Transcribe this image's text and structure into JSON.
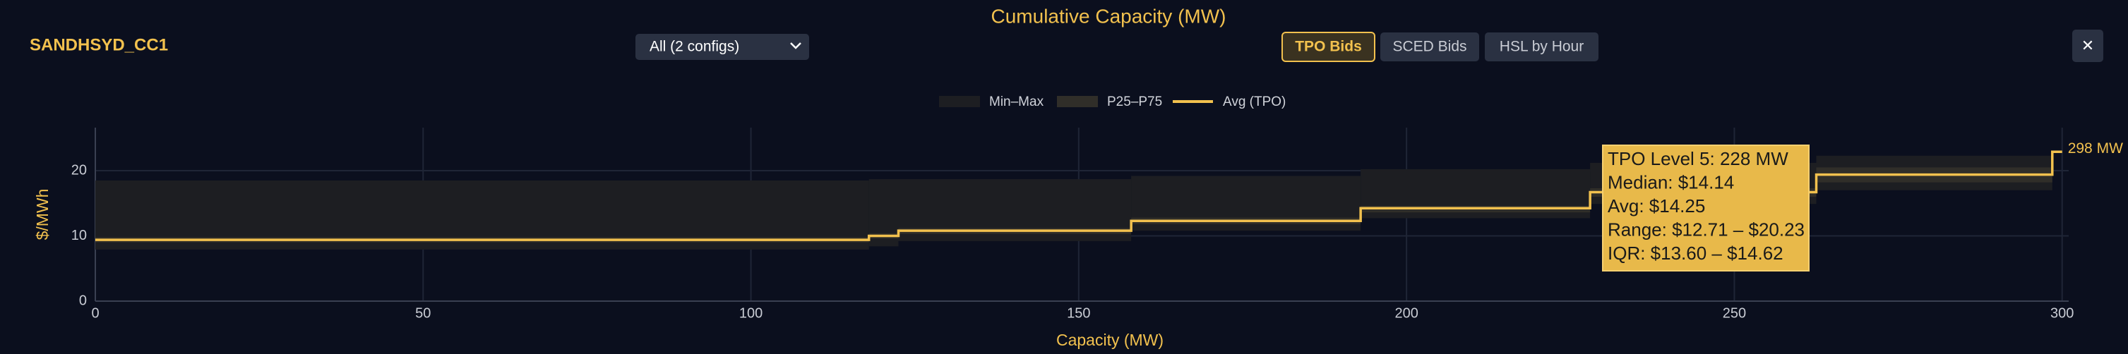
{
  "header": {
    "unit": "SANDHSYD_CC1",
    "dropdown": "All (2 configs)",
    "tabs": [
      "TPO Bids",
      "SCED Bids",
      "HSL by Hour"
    ],
    "active_tab": 0,
    "close": "✕"
  },
  "chart_data": {
    "type": "step",
    "title": "Cumulative Capacity (MW)",
    "x_label": "Capacity (MW)",
    "y_label": "$/MWh",
    "x": [
      0,
      118,
      122.5,
      158,
      193,
      228,
      262.5,
      298.5,
      300
    ],
    "series": [
      {
        "name": "Min–Max",
        "color": "#1d1e22",
        "lower": [
          7.9,
          8.4,
          9.2,
          10.8,
          12.71,
          14.9,
          17.0,
          22.3,
          null
        ],
        "upper": [
          18.5,
          18.7,
          18.7,
          19.2,
          20.23,
          21.2,
          22.3,
          22.3,
          null
        ]
      },
      {
        "name": "P25–P75",
        "color": "#302e29",
        "lower": [
          9.0,
          9.6,
          10.3,
          11.8,
          13.6,
          16.0,
          18.2,
          null,
          null
        ],
        "upper": [
          9.8,
          10.4,
          11.2,
          12.8,
          14.62,
          17.3,
          20.5,
          null,
          null
        ]
      },
      {
        "name": "Avg (TPO)",
        "color": "#f2c14e",
        "values": [
          9.4,
          10.0,
          10.8,
          12.3,
          14.25,
          16.7,
          19.4,
          22.9,
          22.9
        ]
      }
    ],
    "end_label": "298 MW",
    "tooltip": [
      "TPO Level 5: 228 MW",
      "Median: $14.14",
      "Avg: $14.25",
      "Range: $12.71 – $20.23",
      "IQR: $13.60 – $14.62"
    ],
    "xlim": [
      0,
      301
    ],
    "ylim": [
      0,
      26.6
    ],
    "xticks": [
      0,
      50,
      100,
      150,
      200,
      250,
      300
    ],
    "yticks": [
      0,
      10,
      20
    ],
    "grid": true
  }
}
